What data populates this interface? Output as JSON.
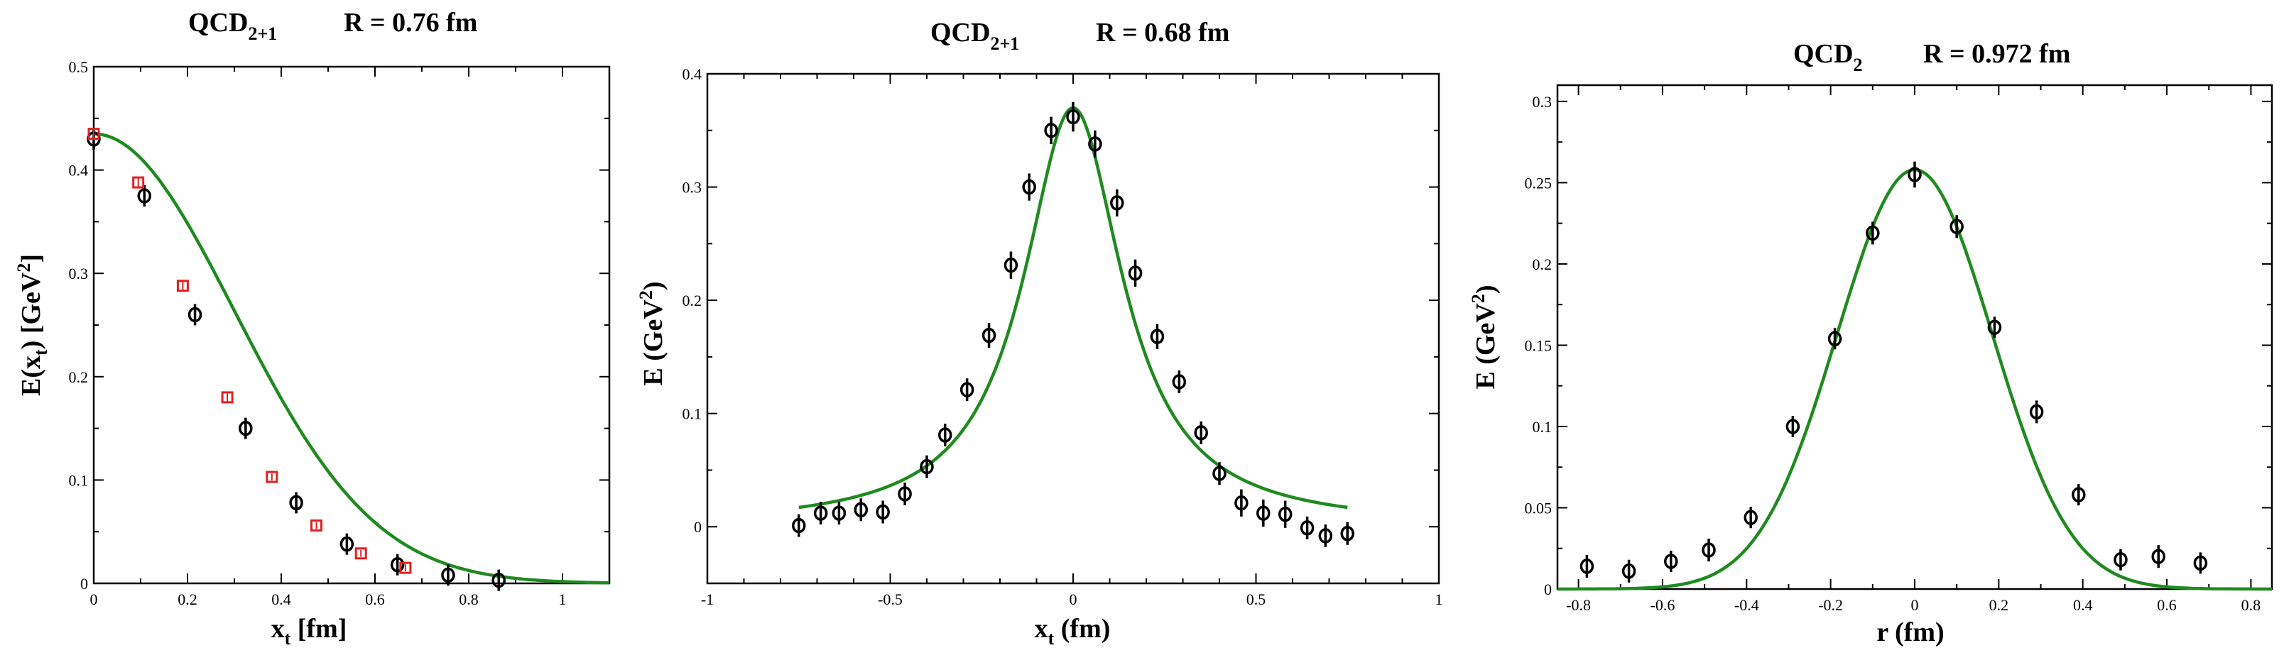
{
  "chart_data": [
    {
      "type": "scatter",
      "title": "QCD",
      "title_sub": "2+1",
      "title_r": "R = 0.76 fm",
      "xlabel": "x",
      "xlabel_sub": "t",
      "xlabel_unit": " [fm]",
      "ylabel": "E(x",
      "ylabel_sub": "t",
      "ylabel_unit": ") [GeV",
      "ylabel_sup": "2",
      "ylabel_close": "]",
      "xlim": [
        0,
        1.1
      ],
      "ylim": [
        0,
        0.5
      ],
      "xticks": [
        0,
        0.2,
        0.4,
        0.6,
        0.8,
        1
      ],
      "xtick_labels": [
        "0",
        "0.2",
        "0.4",
        "0.6",
        "0.8",
        "1"
      ],
      "yticks": [
        0,
        0.1,
        0.2,
        0.3,
        0.4,
        0.5
      ],
      "ytick_labels": [
        "0",
        "0.1",
        "0.2",
        "0.3",
        "0.4",
        "0.5"
      ],
      "fit": {
        "color": "#1f8a1f",
        "model": "gaussian",
        "amplitude": 0.435,
        "width_sigma": 0.3,
        "center": 0,
        "xrange": [
          0,
          1.1
        ]
      },
      "series": [
        {
          "name": "circles",
          "marker": "circle",
          "color": "#000000",
          "x": [
            0,
            0.108,
            0.216,
            0.324,
            0.432,
            0.54,
            0.648,
            0.756,
            0.864
          ],
          "y": [
            0.43,
            0.375,
            0.26,
            0.15,
            0.078,
            0.038,
            0.018,
            0.008,
            0.003
          ],
          "err": [
            0.006,
            0.005,
            0.004,
            0.003,
            0.003,
            0.003,
            0.003,
            0.002,
            0.002
          ]
        },
        {
          "name": "squares",
          "marker": "square",
          "color": "#e02020",
          "x": [
            0,
            0.095,
            0.19,
            0.285,
            0.38,
            0.475,
            0.57,
            0.665
          ],
          "y": [
            0.435,
            0.388,
            0.288,
            0.18,
            0.103,
            0.056,
            0.029,
            0.015
          ],
          "err": [
            0.004,
            0.003,
            0.003,
            0.003,
            0.002,
            0.002,
            0.002,
            0.002
          ]
        }
      ]
    },
    {
      "type": "scatter",
      "title": "QCD",
      "title_sub": "2+1",
      "title_r": "R = 0.68 fm",
      "xlabel": "x",
      "xlabel_sub": "t",
      "xlabel_unit": "  (fm)",
      "ylabel": "E  (GeV",
      "ylabel_sup": "2",
      "ylabel_close": ")",
      "xlim": [
        -1,
        1
      ],
      "ylim": [
        -0.05,
        0.4
      ],
      "xticks": [
        -1,
        -0.5,
        0,
        0.5,
        1
      ],
      "xtick_labels": [
        "-1",
        "-0.5",
        "0",
        "0.5",
        "1"
      ],
      "yticks": [
        0,
        0.1,
        0.2,
        0.3,
        0.4
      ],
      "ytick_labels": [
        "0",
        "0.1",
        "0.2",
        "0.3",
        "0.4"
      ],
      "fit": {
        "color": "#1f8a1f",
        "model": "lorentzian",
        "amplitude": 0.37,
        "gamma": 0.165,
        "center": 0,
        "xrange": [
          -0.75,
          0.75
        ]
      },
      "series": [
        {
          "name": "circles",
          "marker": "circle",
          "color": "#000000",
          "x": [
            -0.75,
            -0.69,
            -0.64,
            -0.58,
            -0.52,
            -0.46,
            -0.4,
            -0.35,
            -0.29,
            -0.23,
            -0.17,
            -0.12,
            -0.06,
            0,
            0.06,
            0.12,
            0.17,
            0.23,
            0.29,
            0.35,
            0.4,
            0.46,
            0.52,
            0.58,
            0.64,
            0.69,
            0.75
          ],
          "y": [
            0.001,
            0.012,
            0.012,
            0.015,
            0.013,
            0.029,
            0.053,
            0.081,
            0.121,
            0.169,
            0.231,
            0.3,
            0.35,
            0.362,
            0.338,
            0.286,
            0.224,
            0.168,
            0.128,
            0.083,
            0.047,
            0.021,
            0.012,
            0.011,
            -0.001,
            -0.008,
            -0.006
          ],
          "err": [
            0.01,
            0.01,
            0.01,
            0.01,
            0.01,
            0.01,
            0.01,
            0.01,
            0.01,
            0.011,
            0.012,
            0.012,
            0.012,
            0.013,
            0.012,
            0.012,
            0.012,
            0.011,
            0.01,
            0.01,
            0.01,
            0.012,
            0.012,
            0.012,
            0.01,
            0.01,
            0.01
          ]
        }
      ]
    },
    {
      "type": "scatter",
      "title": "QCD",
      "title_sub": "2",
      "title_r": "R = 0.972 fm",
      "xlabel": "r (fm)",
      "ylabel": "E  (GeV",
      "ylabel_sup": "2",
      "ylabel_close": ")",
      "xlim": [
        -0.85,
        0.85
      ],
      "ylim": [
        0,
        0.31
      ],
      "xticks": [
        -0.8,
        -0.6,
        -0.4,
        -0.2,
        0,
        0.2,
        0.4,
        0.6,
        0.8
      ],
      "xtick_labels": [
        "-0.8",
        "-0.6",
        "-0.4",
        "-0.2",
        "0",
        "0.2",
        "0.4",
        "0.6",
        "0.8"
      ],
      "yticks": [
        0,
        0.05,
        0.1,
        0.15,
        0.2,
        0.25,
        0.3
      ],
      "ytick_labels": [
        "0",
        "0.05",
        "0.1",
        "0.15",
        "0.2",
        "0.25",
        "0.3"
      ],
      "fit": {
        "color": "#1f8a1f",
        "model": "gaussian",
        "amplitude": 0.258,
        "width_sigma": 0.185,
        "center": 0,
        "xrange": [
          -0.85,
          0.85
        ]
      },
      "series": [
        {
          "name": "circles",
          "marker": "circle",
          "color": "#000000",
          "x": [
            -0.78,
            -0.68,
            -0.58,
            -0.49,
            -0.39,
            -0.29,
            -0.19,
            -0.1,
            0,
            0.1,
            0.19,
            0.29,
            0.39,
            0.49,
            0.58,
            0.68
          ],
          "y": [
            0.014,
            0.011,
            0.017,
            0.024,
            0.044,
            0.1,
            0.154,
            0.219,
            0.255,
            0.223,
            0.161,
            0.109,
            0.058,
            0.018,
            0.02,
            0.016
          ],
          "err": [
            0.007,
            0.007,
            0.006,
            0.007,
            0.005,
            0.006,
            0.006,
            0.007,
            0.008,
            0.007,
            0.006,
            0.007,
            0.006,
            0.006,
            0.007,
            0.006
          ]
        }
      ]
    }
  ]
}
